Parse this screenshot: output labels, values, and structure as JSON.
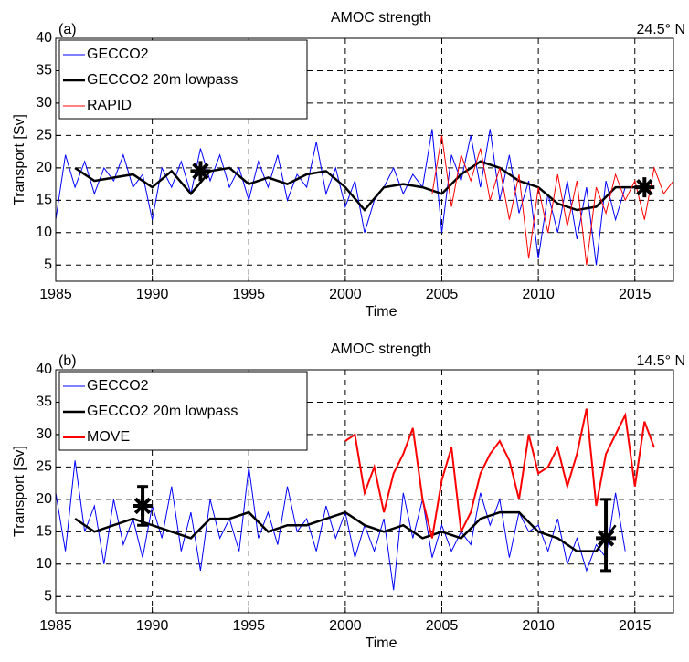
{
  "chart_data": [
    {
      "type": "line",
      "title": "AMOC strength",
      "panel_label": "(a)",
      "annotation": "24.5° N",
      "x_label": "Time",
      "y_label": "Transport [Sv]",
      "xlim": [
        1985,
        2017
      ],
      "ylim": [
        2.5,
        40
      ],
      "xticks": [
        1985,
        1990,
        1995,
        2000,
        2005,
        2010,
        2015
      ],
      "yticks": [
        5,
        10,
        15,
        20,
        25,
        30,
        35,
        40
      ],
      "grid": true,
      "legend": "upper left",
      "series": [
        {
          "name": "GECCO2",
          "color": "#0000ff",
          "width": 1,
          "x": [
            1985,
            1985.5,
            1986,
            1986.5,
            1987,
            1987.5,
            1988,
            1988.5,
            1989,
            1989.5,
            1990,
            1990.5,
            1991,
            1991.5,
            1992,
            1992.5,
            1993,
            1993.5,
            1994,
            1994.5,
            1995,
            1995.5,
            1996,
            1996.5,
            1997,
            1997.5,
            1998,
            1998.5,
            1999,
            1999.5,
            2000,
            2000.5,
            2001,
            2001.5,
            2002,
            2002.5,
            2003,
            2003.5,
            2004,
            2004.5,
            2005,
            2005.5,
            2006,
            2006.5,
            2007,
            2007.5,
            2008,
            2008.5,
            2009,
            2009.5,
            2010,
            2010.5,
            2011,
            2011.5,
            2012,
            2012.5,
            2013,
            2013.5,
            2014,
            2014.5
          ],
          "values": [
            12,
            22,
            17,
            21,
            16,
            20,
            18,
            22,
            17,
            19,
            12,
            20,
            17,
            21,
            16,
            23,
            18,
            22,
            17,
            20,
            15,
            21,
            17,
            22,
            15,
            19,
            17,
            24,
            16,
            20,
            14,
            18,
            10,
            15,
            17,
            20,
            16,
            19,
            17,
            26,
            10,
            22,
            18,
            25,
            17,
            26,
            15,
            22,
            13,
            18,
            6,
            16,
            10,
            18,
            9,
            17,
            5,
            18,
            12,
            17
          ]
        },
        {
          "name": "GECCO2 20m lowpass",
          "color": "#000000",
          "width": 2.5,
          "x": [
            1986,
            1987,
            1988,
            1989,
            1990,
            1991,
            1992,
            1993,
            1994,
            1995,
            1996,
            1997,
            1998,
            1999,
            2000,
            2001,
            2002,
            2003,
            2004,
            2005,
            2006,
            2007,
            2008,
            2009,
            2010,
            2011,
            2012,
            2013,
            2014,
            2015,
            2016
          ],
          "values": [
            20,
            18,
            18.5,
            19,
            17,
            19.5,
            16,
            19.5,
            20,
            17.5,
            18.5,
            17.5,
            19,
            19.5,
            17,
            13.5,
            17,
            17.5,
            17,
            16,
            19,
            21,
            20,
            18,
            17,
            14.5,
            13.5,
            14,
            17,
            17,
            17
          ]
        },
        {
          "name": "RAPID",
          "color": "#ff0000",
          "width": 1,
          "x": [
            2004.5,
            2005,
            2005.5,
            2006,
            2006.5,
            2007,
            2007.5,
            2008,
            2008.5,
            2009,
            2009.5,
            2010,
            2010.5,
            2011,
            2011.5,
            2012,
            2012.5,
            2013,
            2013.5,
            2014,
            2014.5,
            2015,
            2015.5,
            2016,
            2016.5,
            2017
          ],
          "values": [
            16,
            25,
            14,
            22,
            18,
            23,
            15,
            20,
            12,
            19,
            6,
            17,
            10,
            19,
            11,
            18,
            5,
            17,
            13,
            19,
            15,
            18,
            12,
            20,
            16,
            18
          ]
        }
      ],
      "points": [
        {
          "x": 1992.5,
          "y": 19.5
        },
        {
          "x": 2015.5,
          "y": 17
        }
      ]
    },
    {
      "type": "line",
      "title": "AMOC strength",
      "panel_label": "(b)",
      "annotation": "14.5° N",
      "x_label": "Time",
      "y_label": "Transport [Sv]",
      "xlim": [
        1985,
        2017
      ],
      "ylim": [
        2.5,
        40
      ],
      "xticks": [
        1985,
        1990,
        1995,
        2000,
        2005,
        2010,
        2015
      ],
      "yticks": [
        5,
        10,
        15,
        20,
        25,
        30,
        35,
        40
      ],
      "grid": true,
      "legend": "upper left",
      "series": [
        {
          "name": "GECCO2",
          "color": "#0000ff",
          "width": 1,
          "x": [
            1985,
            1985.5,
            1986,
            1986.5,
            1987,
            1987.5,
            1988,
            1988.5,
            1989,
            1989.5,
            1990,
            1990.5,
            1991,
            1991.5,
            1992,
            1992.5,
            1993,
            1993.5,
            1994,
            1994.5,
            1995,
            1995.5,
            1996,
            1996.5,
            1997,
            1997.5,
            1998,
            1998.5,
            1999,
            1999.5,
            2000,
            2000.5,
            2001,
            2001.5,
            2002,
            2002.5,
            2003,
            2003.5,
            2004,
            2004.5,
            2005,
            2005.5,
            2006,
            2006.5,
            2007,
            2007.5,
            2008,
            2008.5,
            2009,
            2009.5,
            2010,
            2010.5,
            2011,
            2011.5,
            2012,
            2012.5,
            2013,
            2013.5,
            2014,
            2014.5
          ],
          "values": [
            21,
            12,
            26,
            15,
            19,
            10,
            20,
            13,
            17,
            11,
            19,
            14,
            22,
            12,
            18,
            9,
            20,
            14,
            17,
            12,
            25,
            14,
            18,
            13,
            22,
            15,
            17,
            12,
            19,
            14,
            18,
            11,
            16,
            12,
            17,
            6,
            21,
            14,
            20,
            11,
            16,
            12,
            15,
            13,
            21,
            16,
            20,
            11,
            18,
            15,
            16,
            12,
            17,
            10,
            14,
            9,
            13,
            11,
            21,
            12
          ]
        },
        {
          "name": "GECCO2 20m lowpass",
          "color": "#000000",
          "width": 2.5,
          "x": [
            1986,
            1987,
            1988,
            1989,
            1990,
            1991,
            1992,
            1993,
            1994,
            1995,
            1996,
            1997,
            1998,
            1999,
            2000,
            2001,
            2002,
            2003,
            2004,
            2005,
            2006,
            2007,
            2008,
            2009,
            2010,
            2011,
            2012,
            2013,
            2014
          ],
          "values": [
            17,
            15,
            16,
            17,
            16,
            15,
            14,
            17,
            17,
            18,
            15,
            16,
            16,
            17,
            18,
            16,
            15,
            16,
            14,
            15,
            14,
            17,
            18,
            18,
            15,
            14,
            12,
            12,
            16
          ]
        },
        {
          "name": "MOVE",
          "color": "#ff0000",
          "width": 2,
          "x": [
            2000,
            2000.5,
            2001,
            2001.5,
            2002,
            2002.5,
            2003,
            2003.5,
            2004,
            2004.5,
            2005,
            2005.5,
            2006,
            2006.5,
            2007,
            2007.5,
            2008,
            2008.5,
            2009,
            2009.5,
            2010,
            2010.5,
            2011,
            2011.5,
            2012,
            2012.5,
            2013,
            2013.5,
            2014,
            2014.5,
            2015,
            2015.5,
            2016
          ],
          "values": [
            29,
            30,
            21,
            25,
            18,
            24,
            27,
            31,
            20,
            14,
            23,
            28,
            15,
            18,
            24,
            27,
            29,
            26,
            20,
            30,
            24,
            25,
            28,
            22,
            27,
            34,
            19,
            27,
            30,
            33,
            22,
            32,
            28
          ]
        }
      ],
      "points": [
        {
          "x": 1989.5,
          "y": 19,
          "ylow": 16,
          "yhigh": 22
        },
        {
          "x": 2013.5,
          "y": 14,
          "ylow": 9,
          "yhigh": 20
        }
      ]
    }
  ]
}
